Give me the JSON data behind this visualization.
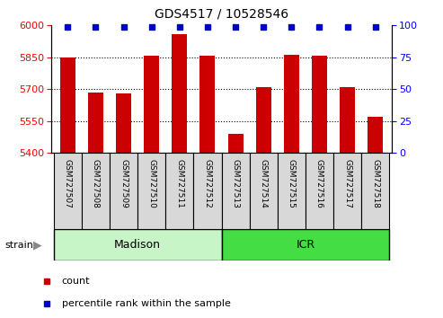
{
  "title": "GDS4517 / 10528546",
  "samples": [
    "GSM727507",
    "GSM727508",
    "GSM727509",
    "GSM727510",
    "GSM727511",
    "GSM727512",
    "GSM727513",
    "GSM727514",
    "GSM727515",
    "GSM727516",
    "GSM727517",
    "GSM727518"
  ],
  "counts": [
    5848,
    5685,
    5680,
    5858,
    5960,
    5858,
    5490,
    5710,
    5862,
    5858,
    5710,
    5568
  ],
  "percentiles": [
    99,
    99,
    99,
    99,
    99,
    99,
    99,
    99,
    99,
    99,
    99,
    99
  ],
  "ylim_left": [
    5400,
    6000
  ],
  "ylim_right": [
    0,
    100
  ],
  "yticks_left": [
    5400,
    5550,
    5700,
    5850,
    6000
  ],
  "yticks_right": [
    0,
    25,
    50,
    75,
    100
  ],
  "bar_color": "#cc0000",
  "dot_color": "#0000cc",
  "madison_count": 6,
  "icr_count": 6,
  "madison_color": "#c8f5c8",
  "icr_color": "#44dd44",
  "label_box_color": "#d8d8d8",
  "strain_label": "strain",
  "legend_count_label": "count",
  "legend_percentile_label": "percentile rank within the sample",
  "background_color": "#ffffff"
}
